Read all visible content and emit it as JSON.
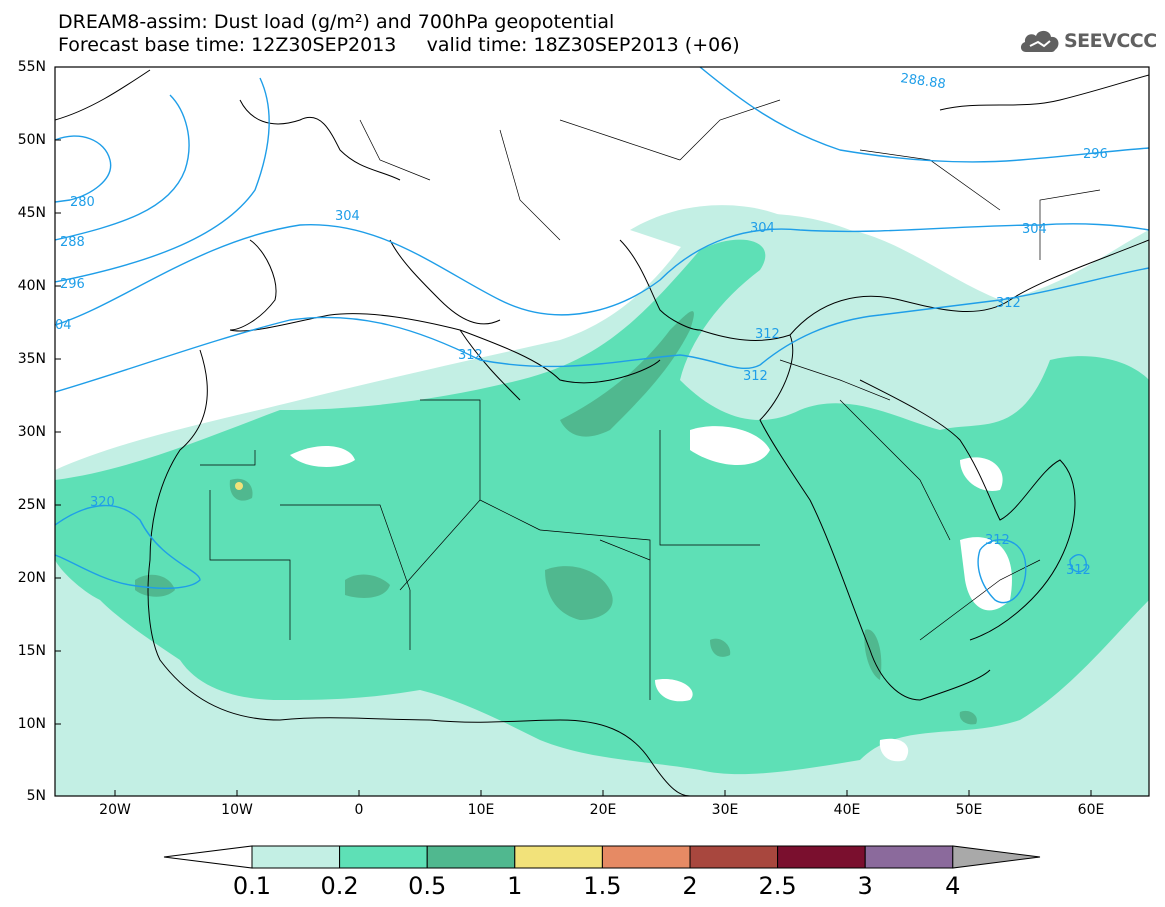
{
  "title": {
    "line1": "DREAM8-assim: Dust load (g/m²) and 700hPa geopotential",
    "line2": "Forecast base time: 12Z30SEP2013     valid time: 18Z30SEP2013 (+06)"
  },
  "logo": {
    "text": "SEEVCCC",
    "icon": "cloud-icon"
  },
  "axes": {
    "lat_labels": [
      "55N",
      "50N",
      "45N",
      "40N",
      "35N",
      "30N",
      "25N",
      "20N",
      "15N",
      "10N",
      "5N"
    ],
    "lon_labels": [
      "20W",
      "10W",
      "0",
      "10E",
      "20E",
      "30E",
      "40E",
      "50E",
      "60E"
    ]
  },
  "contour_labels": [
    {
      "text": "288.88"
    },
    {
      "text": "296"
    },
    {
      "text": "280"
    },
    {
      "text": "288"
    },
    {
      "text": "296"
    },
    {
      "text": "304"
    },
    {
      "text": "304"
    },
    {
      "text": "304"
    },
    {
      "text": "04"
    },
    {
      "text": "312"
    },
    {
      "text": "312"
    },
    {
      "text": "312"
    },
    {
      "text": "312"
    },
    {
      "text": "320"
    },
    {
      "text": "312"
    },
    {
      "text": "312"
    }
  ],
  "colorbar": {
    "labels": [
      "0.1",
      "0.2",
      "0.5",
      "1",
      "1.5",
      "2",
      "2.5",
      "3",
      "4"
    ],
    "colors": [
      "#c3efe4",
      "#5ee0b6",
      "#50b88f",
      "#f2e27a",
      "#e68a64",
      "#a8473e",
      "#7a0f2e",
      "#8b6a9c",
      "#a9a9a9"
    ]
  },
  "colors": {
    "contour": "#1f9ee8",
    "dust_low": "#c3efe4",
    "dust_mid": "#5ee0b6",
    "dust_high": "#50b88f",
    "dust_peak": "#f2e27a"
  }
}
